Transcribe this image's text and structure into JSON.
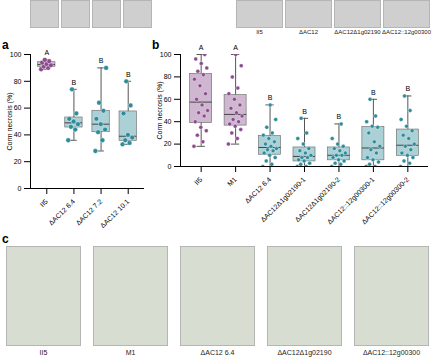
{
  "chart_data": [
    {
      "type": "box",
      "title": "a",
      "y_label": "Corm necrosis (%)",
      "categories": [
        "II5",
        "ΔAC12 6.4",
        "ΔAC12 7.2",
        "ΔAC12 10.1"
      ],
      "values": [
        [
          89,
          90,
          91,
          92,
          93,
          94,
          95,
          96
        ],
        [
          36,
          44,
          46,
          48,
          50,
          52,
          56,
          74
        ],
        [
          28,
          36,
          42,
          44,
          48,
          52,
          58,
          64,
          90
        ],
        [
          33,
          34,
          36,
          38,
          40,
          56,
          62,
          80
        ]
      ],
      "colors": [
        "#8a4a8c",
        "#2e8b9a",
        "#2e8b9a",
        "#2e8b9a"
      ],
      "annotations": [
        "A",
        "B",
        "B",
        "B"
      ],
      "ylim": [
        0,
        100
      ],
      "yticks": [
        0,
        20,
        40,
        60,
        80,
        100
      ]
    },
    {
      "type": "box",
      "title": "b",
      "y_label": "Corm necrosis (%)",
      "categories": [
        "II5",
        "M1",
        "ΔAC12 6.4",
        "ΔAC12Δ1g02190-1",
        "ΔAC12Δ1g02190-2",
        "ΔAC12::12g00300-1",
        "ΔAC12::12g00300-2"
      ],
      "values": [
        [
          18,
          22,
          28,
          32,
          35,
          40,
          45,
          48,
          50,
          55,
          60,
          65,
          72,
          78,
          82,
          85,
          88,
          92,
          96,
          100
        ],
        [
          20,
          25,
          30,
          33,
          36,
          38,
          40,
          42,
          45,
          48,
          52,
          55,
          60,
          65,
          70,
          80,
          90,
          100
        ],
        [
          0,
          2,
          5,
          8,
          10,
          12,
          14,
          15,
          16,
          18,
          20,
          22,
          25,
          28,
          30,
          35,
          42,
          55
        ],
        [
          0,
          0,
          2,
          3,
          5,
          6,
          8,
          8,
          10,
          12,
          14,
          16,
          20,
          25,
          30,
          43
        ],
        [
          0,
          2,
          3,
          5,
          6,
          8,
          10,
          10,
          12,
          14,
          16,
          18,
          20,
          25,
          38
        ],
        [
          0,
          0,
          2,
          4,
          6,
          8,
          12,
          15,
          18,
          22,
          30,
          35,
          36,
          40,
          45,
          60
        ],
        [
          0,
          3,
          5,
          8,
          10,
          12,
          15,
          18,
          20,
          25,
          28,
          32,
          36,
          42,
          50,
          63
        ]
      ],
      "colors": [
        "#8a4a8c",
        "#8a4a8c",
        "#2e8b9a",
        "#2e8b9a",
        "#2e8b9a",
        "#2e8b9a",
        "#2e8b9a"
      ],
      "annotations": [
        "A",
        "A",
        "B",
        "B",
        "B",
        "B",
        "B"
      ],
      "ylim": [
        0,
        100
      ],
      "yticks": [
        0,
        20,
        40,
        60,
        80,
        100
      ]
    }
  ],
  "figure": {
    "top_left_photos": 4,
    "top_right_photo_labels": [
      "II5",
      "ΔAC12",
      "ΔAC12Δ1g02190",
      "ΔAC12::12g00300"
    ],
    "panel_c_title": "c",
    "panel_c_labels": [
      "II5",
      "M1",
      "ΔAC12 6.4",
      "ΔAC12Δ1g02190",
      "ΔAC12::12g00300"
    ]
  }
}
